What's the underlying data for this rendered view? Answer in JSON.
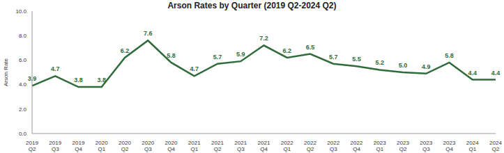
{
  "chart_data": {
    "type": "line",
    "title": "Arson Rates by Quarter (2019 Q2-2024 Q2)",
    "y_label": "Arson Rate",
    "categories": [
      "2019 Q2",
      "2019 Q3",
      "2019 Q4",
      "2020 Q1",
      "2020 Q2",
      "2020 Q3",
      "2020 Q4",
      "2021 Q1",
      "2021 Q2",
      "2021 Q3",
      "2021 Q4",
      "2022 Q1",
      "2022 Q2",
      "2022 Q3",
      "2022 Q4",
      "2023 Q1",
      "2023 Q2",
      "2023 Q3",
      "2023 Q4",
      "2024 Q1",
      "2024 Q2"
    ],
    "values": [
      3.9,
      4.7,
      3.8,
      3.8,
      6.2,
      7.6,
      5.8,
      4.7,
      5.7,
      5.9,
      7.2,
      6.2,
      6.5,
      5.7,
      5.5,
      5.2,
      5.0,
      4.9,
      5.8,
      4.4,
      4.4
    ],
    "value_labels": [
      "3.9",
      "4.7",
      "3.8",
      "3.8",
      "6.2",
      "7.6",
      "5.8",
      "4.7",
      "5.7",
      "5.9",
      "7.2",
      "6.2",
      "6.5",
      "5.7",
      "5.5",
      "5.2",
      "5.0",
      "4.9",
      "5.8",
      "4.4",
      "4.4"
    ],
    "color": "#2f6b3b",
    "ylim": [
      0,
      10
    ],
    "yticks": [
      {
        "value": 0,
        "label": "0.0"
      },
      {
        "value": 2,
        "label": "2.0"
      },
      {
        "value": 4,
        "label": "4.0"
      },
      {
        "value": 6,
        "label": "6.0"
      },
      {
        "value": 8,
        "label": "8.0"
      },
      {
        "value": 10,
        "label": "10.0"
      }
    ],
    "grid": false,
    "data_labels": true
  }
}
